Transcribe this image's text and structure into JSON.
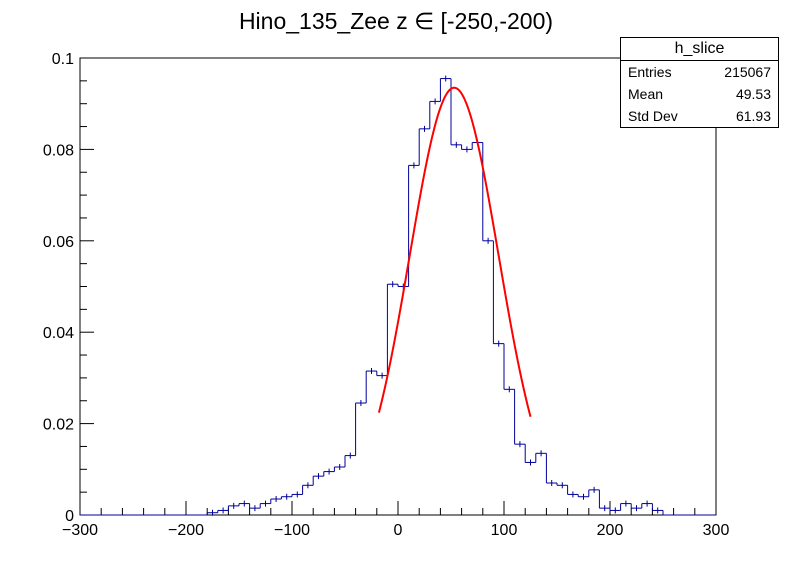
{
  "chart_data": {
    "type": "histogram",
    "title": "Hino_135_Zee z  ∈ [-250,-200)",
    "xlim": [
      -300,
      300
    ],
    "ylim": [
      0,
      0.1
    ],
    "x_ticks": [
      -300,
      -200,
      -100,
      0,
      100,
      200,
      300
    ],
    "x_tick_labels": [
      "−300",
      "−200",
      "−100",
      "0",
      "100",
      "200",
      "300"
    ],
    "y_ticks": [
      0,
      0.02,
      0.04,
      0.06,
      0.08,
      0.1
    ],
    "y_tick_labels": [
      "0",
      "0.02",
      "0.04",
      "0.06",
      "0.08",
      "0.1"
    ],
    "bin_width": 10,
    "bin_edges_start": -300,
    "values": [
      0,
      0,
      0,
      0,
      0,
      0,
      0,
      0,
      0,
      0,
      0,
      0,
      0.0005,
      0.001,
      0.002,
      0.0025,
      0.0015,
      0.0025,
      0.0035,
      0.004,
      0.0045,
      0.0065,
      0.0085,
      0.0095,
      0.0105,
      0.013,
      0.0245,
      0.0315,
      0.0305,
      0.0505,
      0.05,
      0.0765,
      0.0845,
      0.0905,
      0.0955,
      0.081,
      0.08,
      0.0815,
      0.06,
      0.0375,
      0.0275,
      0.0155,
      0.0115,
      0.0135,
      0.007,
      0.0065,
      0.0045,
      0.004,
      0.0055,
      0.0015,
      0.001,
      0.0025,
      0.0015,
      0.0025,
      0.001,
      0,
      0,
      0,
      0,
      0
    ],
    "line_color": "#000099",
    "fit": {
      "type": "gaussian",
      "amplitude": 0.0935,
      "mean": 53,
      "sigma": 42,
      "x_range": [
        -18,
        125
      ],
      "color": "#ff0000"
    },
    "grid": false,
    "legend": "none"
  },
  "stats": {
    "name": "h_slice",
    "rows": [
      {
        "label": "Entries",
        "value": "215067"
      },
      {
        "label": "Mean",
        "value": "49.53"
      },
      {
        "label": "Std Dev",
        "value": "61.93"
      }
    ]
  }
}
